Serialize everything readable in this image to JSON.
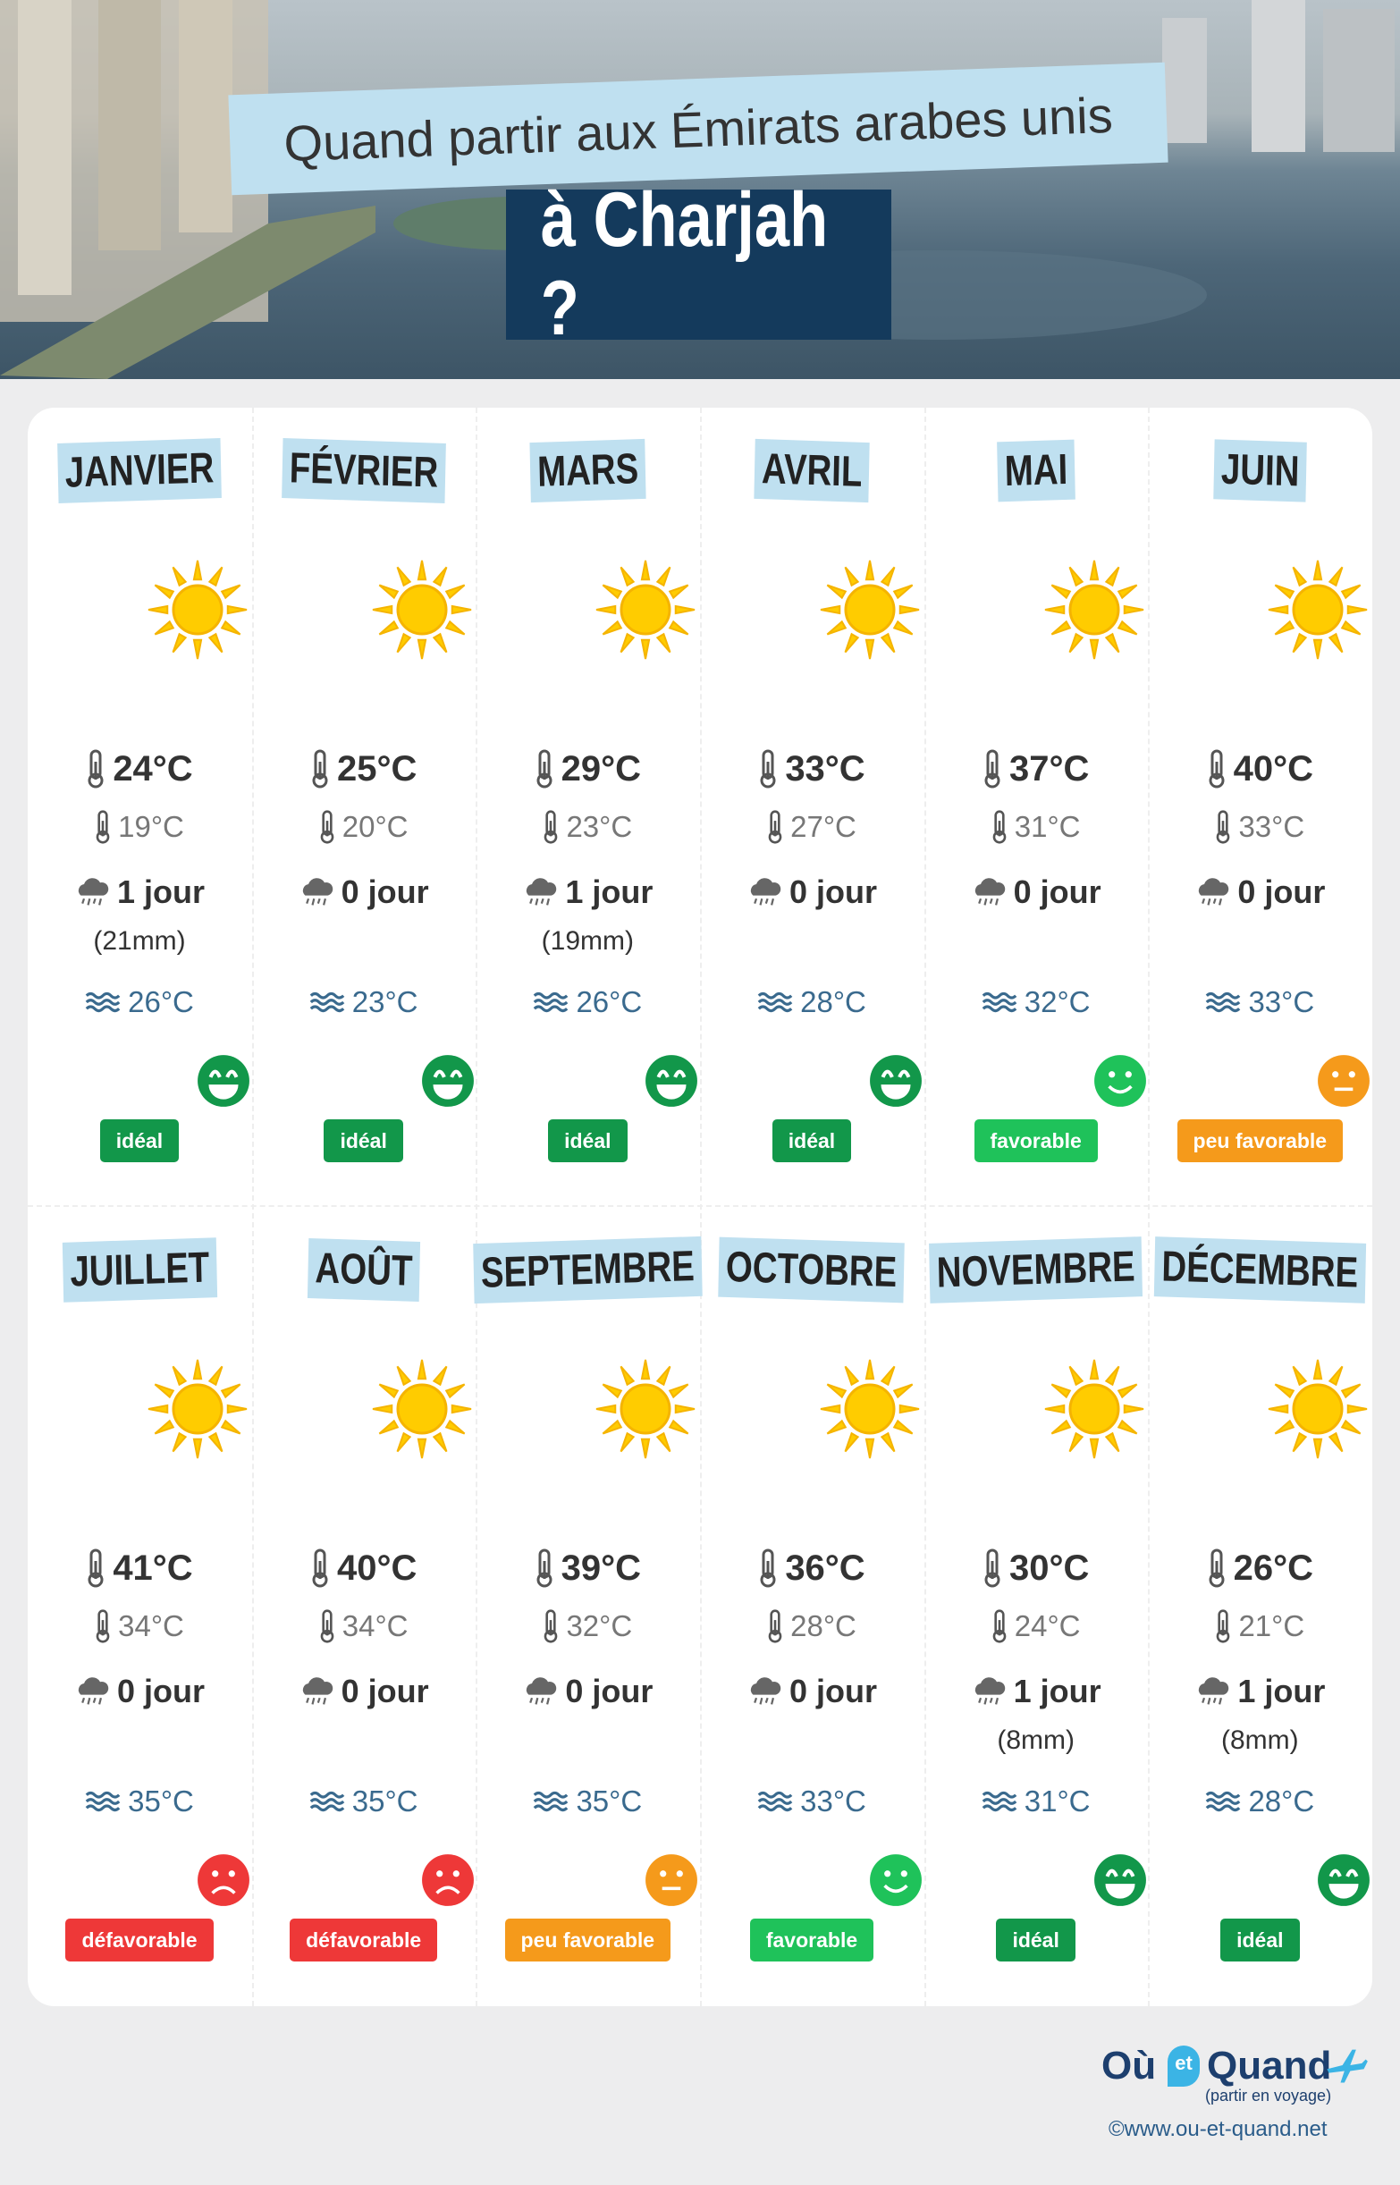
{
  "header": {
    "title": "Quand partir aux Émirats arabes unis",
    "subtitle": "à Charjah ?"
  },
  "months": [
    {
      "name": "JANVIER",
      "max": "24°C",
      "min": "19°C",
      "rain": "1 jour",
      "rain_mm": "(21mm)",
      "sea": "26°C",
      "rating": "idéal",
      "color": "#12974a"
    },
    {
      "name": "FÉVRIER",
      "max": "25°C",
      "min": "20°C",
      "rain": "0 jour",
      "rain_mm": null,
      "sea": "23°C",
      "rating": "idéal",
      "color": "#12974a"
    },
    {
      "name": "MARS",
      "max": "29°C",
      "min": "23°C",
      "rain": "1 jour",
      "rain_mm": "(19mm)",
      "sea": "26°C",
      "rating": "idéal",
      "color": "#12974a"
    },
    {
      "name": "AVRIL",
      "max": "33°C",
      "min": "27°C",
      "rain": "0 jour",
      "rain_mm": null,
      "sea": "28°C",
      "rating": "idéal",
      "color": "#12974a"
    },
    {
      "name": "MAI",
      "max": "37°C",
      "min": "31°C",
      "rain": "0 jour",
      "rain_mm": null,
      "sea": "32°C",
      "rating": "favorable",
      "color": "#1fc25a"
    },
    {
      "name": "JUIN",
      "max": "40°C",
      "min": "33°C",
      "rain": "0 jour",
      "rain_mm": null,
      "sea": "33°C",
      "rating": "peu favorable",
      "color": "#f59a1b"
    },
    {
      "name": "JUILLET",
      "max": "41°C",
      "min": "34°C",
      "rain": "0 jour",
      "rain_mm": null,
      "sea": "35°C",
      "rating": "défavorable",
      "color": "#ee3838"
    },
    {
      "name": "AOÛT",
      "max": "40°C",
      "min": "34°C",
      "rain": "0 jour",
      "rain_mm": null,
      "sea": "35°C",
      "rating": "défavorable",
      "color": "#ee3838"
    },
    {
      "name": "SEPTEMBRE",
      "max": "39°C",
      "min": "32°C",
      "rain": "0 jour",
      "rain_mm": null,
      "sea": "35°C",
      "rating": "peu favorable",
      "color": "#f59a1b"
    },
    {
      "name": "OCTOBRE",
      "max": "36°C",
      "min": "28°C",
      "rain": "0 jour",
      "rain_mm": null,
      "sea": "33°C",
      "rating": "favorable",
      "color": "#1fc25a"
    },
    {
      "name": "NOVEMBRE",
      "max": "30°C",
      "min": "24°C",
      "rain": "1 jour",
      "rain_mm": "(8mm)",
      "sea": "31°C",
      "rating": "idéal",
      "color": "#12974a"
    },
    {
      "name": "DÉCEMBRE",
      "max": "26°C",
      "min": "21°C",
      "rain": "1 jour",
      "rain_mm": "(8mm)",
      "sea": "28°C",
      "rating": "idéal",
      "color": "#12974a"
    }
  ],
  "footer": {
    "logo_left": "Où",
    "logo_mid": "et",
    "logo_right": "Quand",
    "tagline": "(partir en voyage)",
    "url": "©www.ou-et-quand.net"
  }
}
